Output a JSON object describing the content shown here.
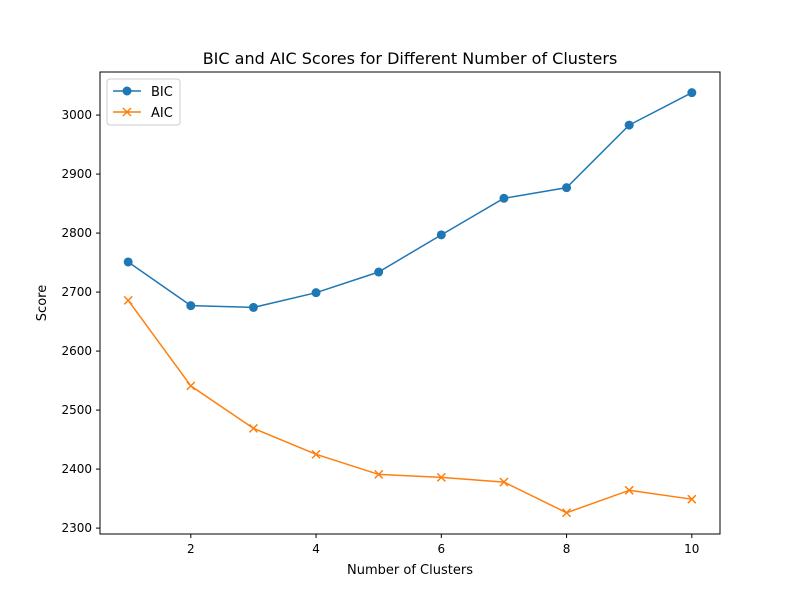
{
  "chart_data": {
    "type": "line",
    "title": "BIC and AIC Scores for Different Number of Clusters",
    "xlabel": "Number of Clusters",
    "ylabel": "Score",
    "x": [
      1,
      2,
      3,
      4,
      5,
      6,
      7,
      8,
      9,
      10
    ],
    "xlim": [
      0.55,
      10.45
    ],
    "ylim": [
      2290,
      3073
    ],
    "xticks": [
      2,
      4,
      6,
      8,
      10
    ],
    "yticks": [
      2300,
      2400,
      2500,
      2600,
      2700,
      2800,
      2900,
      3000
    ],
    "grid": false,
    "legend_position": "top-left",
    "series": [
      {
        "name": "BIC",
        "marker": "circle",
        "color": "#1f77b4",
        "values": [
          2751,
          2677,
          2674,
          2699,
          2734,
          2797,
          2859,
          2877,
          2983,
          3038
        ]
      },
      {
        "name": "AIC",
        "marker": "x",
        "color": "#ff7f0e",
        "values": [
          2686,
          2541,
          2469,
          2425,
          2391,
          2386,
          2378,
          2326,
          2364,
          2349
        ]
      }
    ]
  }
}
